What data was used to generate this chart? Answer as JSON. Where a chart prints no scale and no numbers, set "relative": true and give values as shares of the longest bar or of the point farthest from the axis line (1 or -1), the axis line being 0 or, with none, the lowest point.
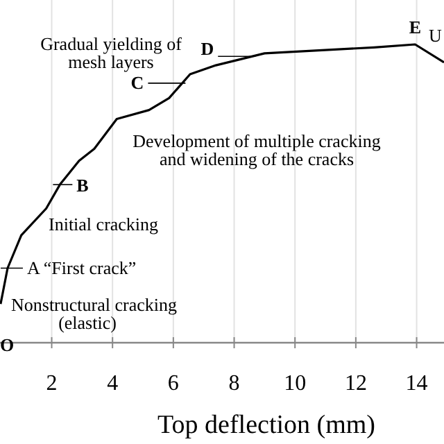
{
  "chart_data": {
    "type": "line",
    "relative": true,
    "xlabel": "Top deflection (mm)",
    "xlim": [
      0.3,
      14.9
    ],
    "xticks": [
      2,
      4,
      6,
      8,
      10,
      12,
      14
    ],
    "grid": "x",
    "marker": "none",
    "line_style": "solid",
    "series": [
      {
        "color": "#000000",
        "x": [
          0.32,
          0.55,
          1.0,
          1.82,
          2.27,
          2.9,
          3.4,
          4.14,
          5.2,
          5.86,
          6.55,
          7.4,
          9.0,
          12.6,
          13.95,
          14.9
        ],
        "values": [
          0.13,
          0.25,
          0.36,
          0.45,
          0.53,
          0.61,
          0.65,
          0.75,
          0.78,
          0.82,
          0.9,
          0.93,
          0.97,
          0.99,
          1.0,
          0.94
        ]
      }
    ],
    "annotations": [
      "O",
      {
        "text": "A “First crack”",
        "x": 0.55,
        "y": 0.25
      },
      {
        "text": "B",
        "x": 2.27,
        "y": 0.53
      },
      {
        "text": "C",
        "x": 6.4,
        "y": 0.87
      },
      {
        "text": "D",
        "x": 8.7,
        "y": 0.96
      },
      {
        "text": "E",
        "x": 13.95,
        "y": 1.0
      },
      "U",
      "Gradual yielding of\nmesh layers",
      "Development of multiple cracking\nand widening of the cracks",
      "Initial cracking",
      "Nonstructural cracking\n(elastic)"
    ]
  }
}
